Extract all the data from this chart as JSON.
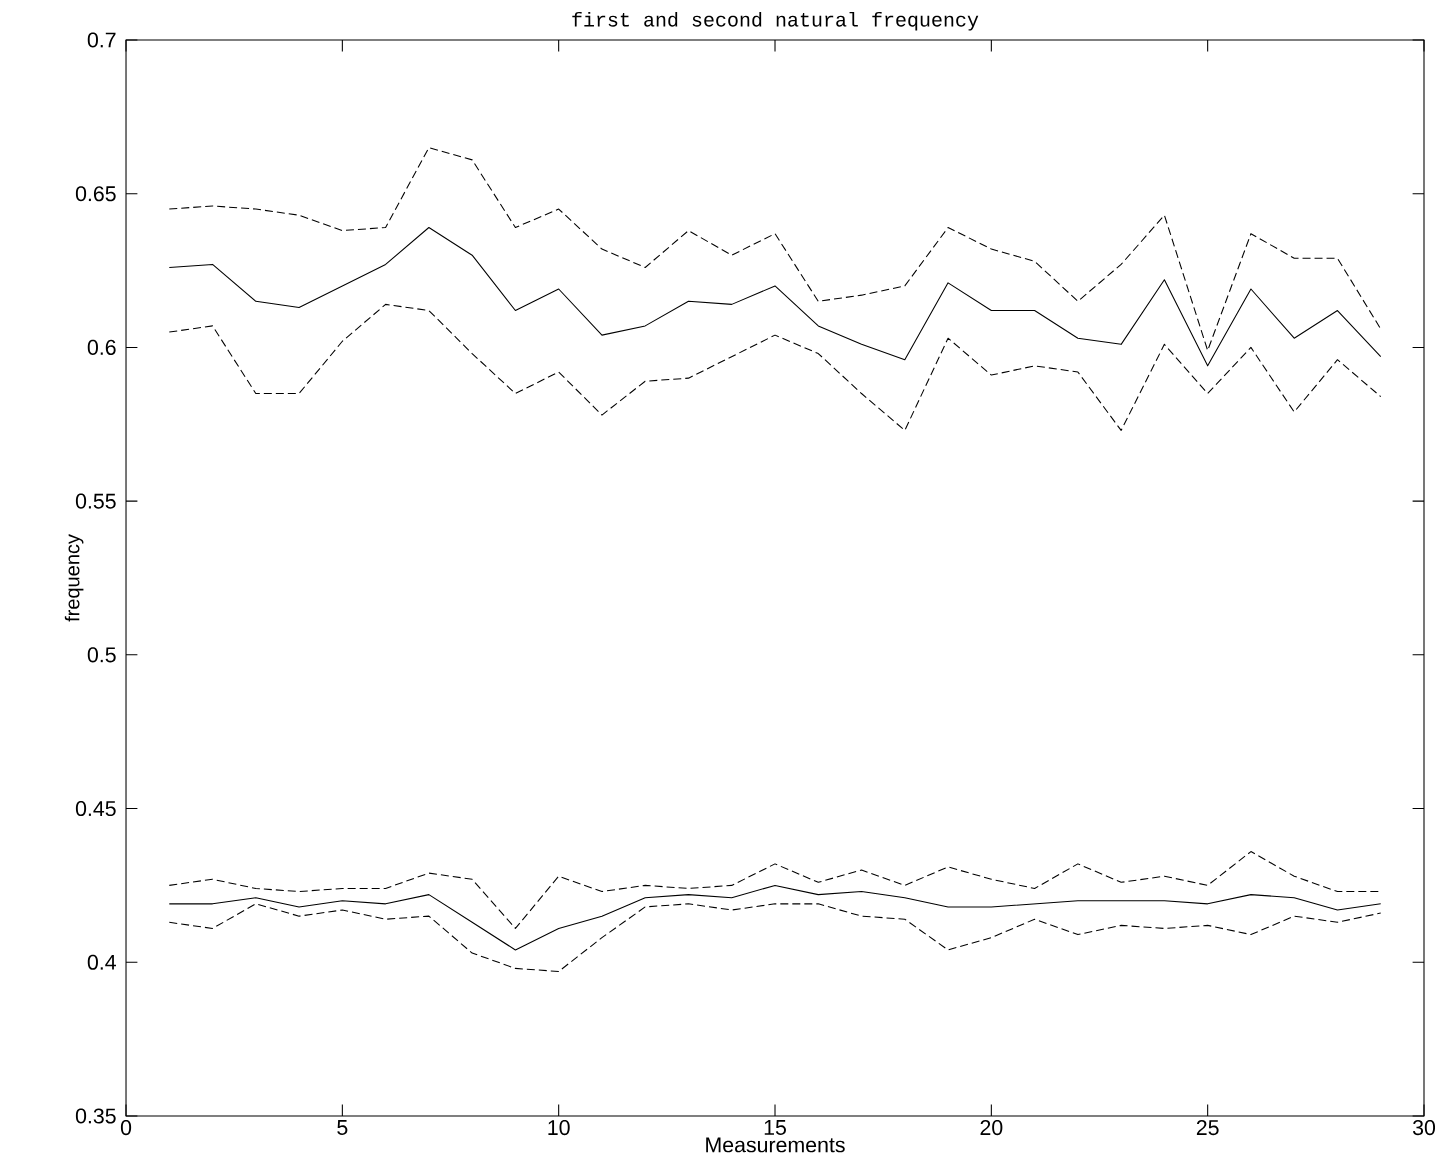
{
  "chart_data": {
    "type": "line",
    "title": "first and second natural frequency",
    "xlabel": "Measurements",
    "ylabel": "frequency",
    "x": [
      1,
      2,
      3,
      4,
      5,
      6,
      7,
      8,
      9,
      10,
      11,
      12,
      13,
      14,
      15,
      16,
      17,
      18,
      19,
      20,
      21,
      22,
      23,
      24,
      25,
      26,
      27,
      28,
      29
    ],
    "series": [
      {
        "color": "#000000",
        "line_style": "solid",
        "values": [
          0.626,
          0.627,
          0.615,
          0.613,
          0.62,
          0.627,
          0.639,
          0.63,
          0.612,
          0.619,
          0.604,
          0.607,
          0.615,
          0.614,
          0.62,
          0.607,
          0.601,
          0.596,
          0.621,
          0.612,
          0.612,
          0.603,
          0.601,
          0.622,
          0.594,
          0.619,
          0.603,
          0.612,
          0.597
        ]
      },
      {
        "color": "#000000",
        "line_style": "dashed",
        "values": [
          0.645,
          0.646,
          0.645,
          0.643,
          0.638,
          0.639,
          0.665,
          0.661,
          0.639,
          0.645,
          0.632,
          0.626,
          0.638,
          0.63,
          0.637,
          0.615,
          0.617,
          0.62,
          0.639,
          0.632,
          0.628,
          0.615,
          0.627,
          0.643,
          0.599,
          0.637,
          0.629,
          0.629,
          0.606
        ]
      },
      {
        "color": "#000000",
        "line_style": "dashed",
        "values": [
          0.605,
          0.607,
          0.585,
          0.585,
          0.602,
          0.614,
          0.612,
          0.598,
          0.585,
          0.592,
          0.578,
          0.589,
          0.59,
          0.597,
          0.604,
          0.598,
          0.585,
          0.573,
          0.603,
          0.591,
          0.594,
          0.592,
          0.573,
          0.601,
          0.585,
          0.6,
          0.579,
          0.596,
          0.584
        ]
      },
      {
        "color": "#000000",
        "line_style": "solid",
        "values": [
          0.419,
          0.419,
          0.421,
          0.418,
          0.42,
          0.419,
          0.422,
          0.413,
          0.404,
          0.411,
          0.415,
          0.421,
          0.422,
          0.421,
          0.425,
          0.422,
          0.423,
          0.421,
          0.418,
          0.418,
          0.419,
          0.42,
          0.42,
          0.42,
          0.419,
          0.422,
          0.421,
          0.417,
          0.419
        ]
      },
      {
        "color": "#000000",
        "line_style": "dashed",
        "values": [
          0.425,
          0.427,
          0.424,
          0.423,
          0.424,
          0.424,
          0.429,
          0.427,
          0.411,
          0.428,
          0.423,
          0.425,
          0.424,
          0.425,
          0.432,
          0.426,
          0.43,
          0.425,
          0.431,
          0.427,
          0.424,
          0.432,
          0.426,
          0.428,
          0.425,
          0.436,
          0.428,
          0.423,
          0.423
        ]
      },
      {
        "color": "#000000",
        "line_style": "dashed",
        "values": [
          0.413,
          0.411,
          0.419,
          0.415,
          0.417,
          0.414,
          0.415,
          0.403,
          0.398,
          0.397,
          0.408,
          0.418,
          0.419,
          0.417,
          0.419,
          0.419,
          0.415,
          0.414,
          0.404,
          0.408,
          0.414,
          0.409,
          0.412,
          0.411,
          0.412,
          0.409,
          0.415,
          0.413,
          0.416
        ]
      }
    ],
    "xlim": [
      0,
      30
    ],
    "xticks": [
      0,
      5,
      10,
      15,
      20,
      25,
      30
    ],
    "ylim": [
      0.35,
      0.7
    ],
    "yticks": [
      0.35,
      0.4,
      0.45,
      0.5,
      0.55,
      0.6,
      0.65,
      0.7
    ],
    "grid": false,
    "marker": "none"
  }
}
